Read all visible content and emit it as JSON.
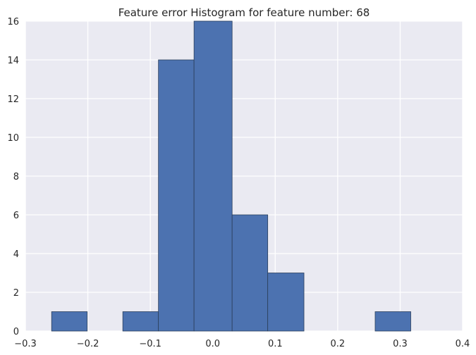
{
  "chart_data": {
    "type": "bar",
    "title": "Feature error Histogram for feature number: 68",
    "xlabel": "",
    "ylabel": "",
    "xlim": [
      -0.3,
      0.4
    ],
    "ylim": [
      0,
      16
    ],
    "xticks": [
      -0.3,
      -0.2,
      -0.1,
      0.0,
      0.1,
      0.2,
      0.3,
      0.4
    ],
    "xtick_labels": [
      "−0.3",
      "−0.2",
      "−0.1",
      "0.0",
      "0.1",
      "0.2",
      "0.3",
      "0.4"
    ],
    "yticks": [
      0,
      2,
      4,
      6,
      8,
      10,
      12,
      14,
      16
    ],
    "ytick_labels": [
      "0",
      "2",
      "4",
      "6",
      "8",
      "10",
      "12",
      "14",
      "16"
    ],
    "grid": true,
    "bins": [
      {
        "x0": -0.258,
        "x1": -0.201,
        "count": 1
      },
      {
        "x0": -0.201,
        "x1": -0.144,
        "count": 0
      },
      {
        "x0": -0.144,
        "x1": -0.087,
        "count": 1
      },
      {
        "x0": -0.087,
        "x1": -0.03,
        "count": 14
      },
      {
        "x0": -0.03,
        "x1": 0.031,
        "count": 16
      },
      {
        "x0": 0.031,
        "x1": 0.088,
        "count": 6
      },
      {
        "x0": 0.088,
        "x1": 0.146,
        "count": 3
      },
      {
        "x0": 0.146,
        "x1": 0.203,
        "count": 0
      },
      {
        "x0": 0.203,
        "x1": 0.26,
        "count": 0
      },
      {
        "x0": 0.26,
        "x1": 0.317,
        "count": 1
      }
    ],
    "colors": {
      "bar_fill": "#4c72b0",
      "bar_edge": "#2b3f5c",
      "plot_bg": "#eaeaf2",
      "grid": "#ffffff"
    }
  }
}
